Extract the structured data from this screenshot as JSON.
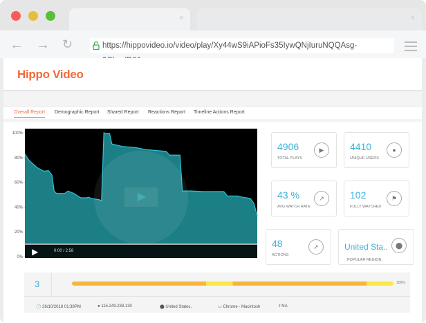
{
  "browser": {
    "url": "https://hippovideo.io/video/play/Xy44wS9iAPioFs35IywQNjIuruNQQAsg-9ClyydD81c"
  },
  "app": {
    "logo": "Hippo Video"
  },
  "tabs": [
    {
      "label": "Overall Report",
      "active": true
    },
    {
      "label": "Demographic Report"
    },
    {
      "label": "Shared Report"
    },
    {
      "label": "Reactions Report"
    },
    {
      "label": "Timeline Actions Report"
    }
  ],
  "player": {
    "time": "0:00 / 2:58"
  },
  "chart_data": {
    "type": "area",
    "yticks": [
      "100%",
      "80%",
      "60%",
      "40%",
      "20%",
      "0%"
    ],
    "ylim": [
      0,
      100
    ],
    "xlim": [
      0,
      178
    ],
    "x": [
      0,
      3,
      9.2,
      14.5,
      18,
      20.7,
      22.4,
      24.2,
      30.4,
      33,
      37.5,
      42.8,
      47.2,
      49,
      50.7,
      56.9,
      58.7,
      60.5,
      61.9,
      64.9,
      66.6,
      74.6,
      85.2,
      92.3,
      108.2,
      110.8,
      118.8,
      120.6,
      127.6,
      136.5,
      152.4,
      155,
      163,
      166.5,
      172.7,
      175.4,
      178
    ],
    "y": [
      83,
      78,
      72,
      69,
      69.5,
      66,
      53,
      51,
      51,
      53,
      51,
      47.5,
      47.5,
      48,
      47,
      46,
      45,
      100,
      99.5,
      99.5,
      91,
      89,
      88,
      86.5,
      85,
      82,
      82,
      53,
      53,
      52.5,
      52.5,
      49,
      49,
      48,
      47,
      43,
      33
    ],
    "color": "#2ec4d6"
  },
  "stats": [
    {
      "value": "4906",
      "label": "TOTAL PLAYS",
      "icon": "play-icon"
    },
    {
      "value": "4410",
      "label": "UNIQUE USERS",
      "icon": "user-icon"
    },
    {
      "value": "43 %",
      "label": "AVG WATCH RATE",
      "icon": "trend-icon"
    },
    {
      "value": "102",
      "label": "FULLY WATCHED",
      "icon": "flag-icon"
    },
    {
      "value": "48",
      "label": "ACTIONS",
      "icon": "cursor-icon"
    },
    {
      "value": "United Sta..",
      "label": "POPULAR REGION",
      "icon": "location-icon"
    }
  ],
  "session": {
    "count": "3",
    "progress_label": "100%",
    "progress": 100,
    "datetime": "26/10/2018 01:38PM",
    "ip": "115.249.238.130",
    "location": "United States,",
    "device": "Chrome - Macintosh",
    "network": "NA"
  }
}
